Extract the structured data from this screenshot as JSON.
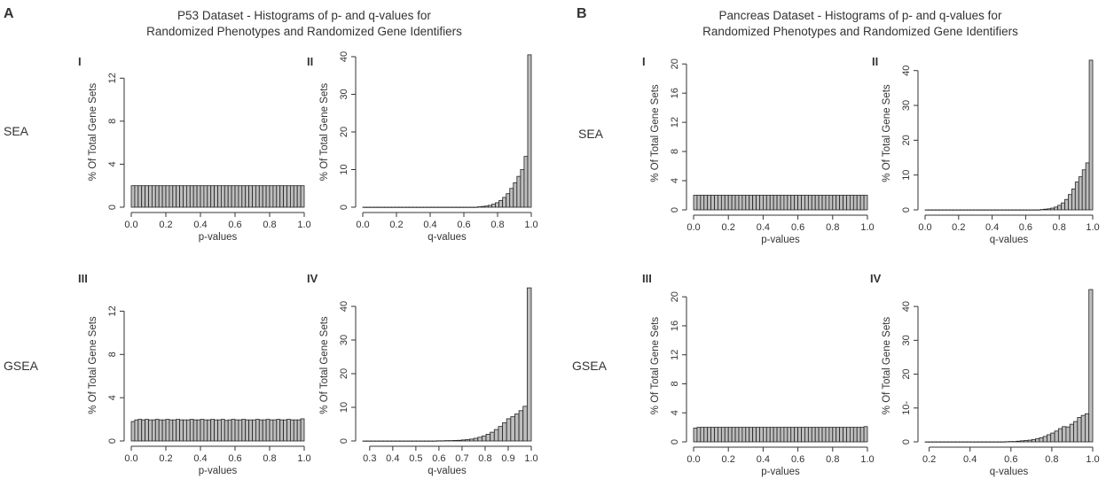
{
  "panels": [
    {
      "letter": "A",
      "title_lines": [
        "P53 Dataset - Histograms of p- and q-values for",
        "Randomized Phenotypes and Randomized Gene Identifiers"
      ],
      "row_labels": [
        "SEA",
        "GSEA"
      ]
    },
    {
      "letter": "B",
      "title_lines": [
        "Pancreas Dataset - Histograms of p- and q-values for",
        "Randomized Phenotypes and Randomized Gene Identifiers"
      ],
      "row_labels": [
        "SEA",
        "GSEA"
      ]
    }
  ],
  "chart_data": [
    {
      "type": "bar",
      "panel": "A",
      "roman": "I",
      "xlabel": "p-values",
      "ylabel": "% Of Total Gene Sets",
      "xlim": [
        0,
        1
      ],
      "ylim": [
        0,
        14
      ],
      "xticks": [
        "0.0",
        "0.2",
        "0.4",
        "0.6",
        "0.8",
        "1.0"
      ],
      "yticks": [
        "0",
        "4",
        "8",
        "12"
      ],
      "bin_edges": [
        0,
        1
      ],
      "values": [
        2.0,
        2.0,
        2.0,
        2.0,
        2.0,
        2.0,
        2.0,
        2.0,
        2.0,
        2.0,
        2.0,
        2.0,
        2.0,
        2.0,
        2.0,
        2.0,
        2.0,
        2.0,
        2.0,
        2.0,
        2.0,
        2.0,
        2.0,
        2.0,
        2.0,
        2.0,
        2.0,
        2.0,
        2.0,
        2.0,
        2.0,
        2.0,
        2.0,
        2.0,
        2.0,
        2.0,
        2.0,
        2.0,
        2.0,
        2.0,
        2.0,
        2.0,
        2.0,
        2.0,
        2.0,
        2.0,
        2.0,
        2.0,
        2.0,
        2.0
      ]
    },
    {
      "type": "bar",
      "panel": "A",
      "roman": "II",
      "xlabel": "q-values",
      "ylabel": "% Of Total Gene Sets",
      "xlim": [
        0,
        1
      ],
      "ylim": [
        0,
        40
      ],
      "xticks": [
        "0.0",
        "0.2",
        "0.4",
        "0.6",
        "0.8",
        "1.0"
      ],
      "yticks": [
        "0",
        "10",
        "20",
        "30",
        "40"
      ],
      "bin_edges": [
        0,
        1
      ],
      "values": [
        0,
        0,
        0,
        0,
        0,
        0,
        0,
        0,
        0,
        0,
        0,
        0,
        0,
        0,
        0,
        0,
        0,
        0,
        0,
        0,
        0,
        0,
        0,
        0,
        0,
        0,
        0,
        0,
        0,
        0,
        0,
        0,
        0.1,
        0.2,
        0.3,
        0.5,
        0.8,
        1.2,
        1.8,
        2.6,
        3.6,
        5.0,
        6.5,
        8.2,
        10.0,
        13.5,
        40.5
      ]
    },
    {
      "type": "bar",
      "panel": "A",
      "roman": "III",
      "xlabel": "p-values",
      "ylabel": "% Of Total Gene Sets",
      "xlim": [
        0,
        1
      ],
      "ylim": [
        0,
        14
      ],
      "xticks": [
        "0.0",
        "0.2",
        "0.4",
        "0.6",
        "0.8",
        "1.0"
      ],
      "yticks": [
        "0",
        "4",
        "8",
        "12"
      ],
      "bin_edges": [
        0,
        1
      ],
      "values": [
        1.8,
        1.95,
        2.0,
        1.95,
        2.0,
        1.95,
        1.95,
        2.0,
        1.95,
        1.95,
        2.0,
        1.95,
        1.95,
        2.0,
        1.95,
        1.95,
        1.95,
        2.0,
        1.95,
        1.95,
        2.0,
        1.95,
        1.95,
        2.0,
        1.95,
        1.95,
        2.0,
        1.9,
        1.95,
        2.0,
        1.95,
        1.95,
        2.0,
        1.95,
        1.95,
        1.95,
        2.0,
        1.95,
        1.95,
        2.0,
        1.95,
        1.95,
        2.0,
        1.95,
        1.95,
        2.0,
        1.95,
        1.95,
        1.95,
        2.05
      ]
    },
    {
      "type": "bar",
      "panel": "A",
      "roman": "IV",
      "xlabel": "q-values",
      "ylabel": "% Of Total Gene Sets",
      "xlim": [
        0.27,
        1
      ],
      "ylim": [
        0,
        45
      ],
      "xticks": [
        "0.3",
        "0.4",
        "0.5",
        "0.6",
        "0.7",
        "0.8",
        "0.9",
        "1.0"
      ],
      "yticks": [
        "0",
        "10",
        "20",
        "30",
        "40"
      ],
      "bin_edges": [
        0.27,
        1
      ],
      "values": [
        0,
        0,
        0,
        0,
        0,
        0,
        0,
        0,
        0,
        0,
        0,
        0,
        0,
        0,
        0,
        0,
        0,
        0,
        0.05,
        0.05,
        0.1,
        0.1,
        0.15,
        0.2,
        0.3,
        0.4,
        0.55,
        0.8,
        1.1,
        1.5,
        2.0,
        2.6,
        3.4,
        4.3,
        5.4,
        6.6,
        7.2,
        8.0,
        9.0,
        10.3,
        45.5
      ]
    },
    {
      "type": "bar",
      "panel": "B",
      "roman": "I",
      "xlabel": "p-values",
      "ylabel": "% Of Total Gene Sets",
      "xlim": [
        0,
        1
      ],
      "ylim": [
        0,
        21
      ],
      "xticks": [
        "0.0",
        "0.2",
        "0.4",
        "0.6",
        "0.8",
        "1.0"
      ],
      "yticks": [
        "0",
        "4",
        "8",
        "12",
        "16",
        "20"
      ],
      "bin_edges": [
        0,
        1
      ],
      "values": [
        2.0,
        2.0,
        2.0,
        2.0,
        2.0,
        2.0,
        2.0,
        2.0,
        2.0,
        2.0,
        2.0,
        2.0,
        2.0,
        2.0,
        2.0,
        2.0,
        2.0,
        2.0,
        2.0,
        2.0,
        2.0,
        2.0,
        2.0,
        2.0,
        2.0,
        2.0,
        2.0,
        2.0,
        2.0,
        2.0,
        2.0,
        2.0,
        2.0,
        2.0,
        2.0,
        2.0,
        2.0,
        2.0,
        2.0,
        2.0,
        2.0,
        2.0,
        2.0,
        2.0,
        2.0,
        2.0,
        2.0,
        2.0,
        2.0,
        2.0
      ]
    },
    {
      "type": "bar",
      "panel": "B",
      "roman": "II",
      "xlabel": "q-values",
      "ylabel": "% Of Total Gene Sets",
      "xlim": [
        0,
        1
      ],
      "ylim": [
        0,
        44
      ],
      "xticks": [
        "0.0",
        "0.2",
        "0.4",
        "0.6",
        "0.8",
        "1.0"
      ],
      "yticks": [
        "0",
        "10",
        "20",
        "30",
        "40"
      ],
      "bin_edges": [
        0,
        1
      ],
      "values": [
        0,
        0,
        0,
        0,
        0,
        0,
        0,
        0,
        0,
        0,
        0,
        0,
        0,
        0,
        0,
        0,
        0,
        0,
        0,
        0,
        0,
        0,
        0,
        0,
        0,
        0,
        0,
        0,
        0,
        0,
        0,
        0,
        0,
        0.1,
        0.2,
        0.3,
        0.5,
        0.8,
        1.3,
        2.0,
        3.0,
        4.4,
        6.0,
        8.0,
        9.5,
        11.5,
        13.5,
        43.0
      ]
    },
    {
      "type": "bar",
      "panel": "B",
      "roman": "III",
      "xlabel": "p-values",
      "ylabel": "% Of Total Gene Sets",
      "xlim": [
        0,
        1
      ],
      "ylim": [
        0,
        21
      ],
      "xticks": [
        "0.0",
        "0.2",
        "0.4",
        "0.6",
        "0.8",
        "1.0"
      ],
      "yticks": [
        "0",
        "4",
        "8",
        "12",
        "16",
        "20"
      ],
      "bin_edges": [
        0,
        1
      ],
      "values": [
        1.9,
        2.0,
        2.0,
        2.0,
        2.0,
        2.0,
        2.0,
        2.0,
        2.0,
        2.0,
        2.0,
        2.0,
        2.0,
        2.0,
        2.0,
        2.0,
        2.0,
        2.0,
        2.0,
        2.0,
        2.0,
        2.0,
        2.0,
        2.0,
        2.0,
        2.0,
        2.0,
        2.0,
        2.0,
        2.0,
        2.0,
        2.0,
        2.0,
        2.0,
        2.0,
        2.0,
        2.0,
        2.0,
        2.0,
        2.0,
        2.0,
        2.0,
        2.0,
        2.0,
        2.0,
        2.0,
        2.0,
        2.0,
        2.0,
        2.1
      ]
    },
    {
      "type": "bar",
      "panel": "B",
      "roman": "IV",
      "xlabel": "q-values",
      "ylabel": "% Of Total Gene Sets",
      "xlim": [
        0.18,
        1
      ],
      "ylim": [
        0,
        45
      ],
      "xticks": [
        "0.2",
        "0.4",
        "0.6",
        "0.8",
        "1.0"
      ],
      "yticks": [
        "0",
        "10-",
        "20",
        "30",
        "40"
      ],
      "bin_edges": [
        0.18,
        1
      ],
      "values": [
        0,
        0,
        0,
        0,
        0,
        0,
        0,
        0,
        0,
        0,
        0,
        0,
        0,
        0,
        0,
        0,
        0,
        0,
        0,
        0,
        0,
        0.05,
        0.1,
        0.1,
        0.2,
        0.3,
        0.4,
        0.5,
        0.7,
        0.9,
        1.2,
        1.6,
        2.1,
        2.6,
        3.2,
        3.9,
        4.5,
        4.4,
        5.2,
        6.0,
        7.2,
        7.8,
        8.3,
        45.0
      ]
    }
  ]
}
